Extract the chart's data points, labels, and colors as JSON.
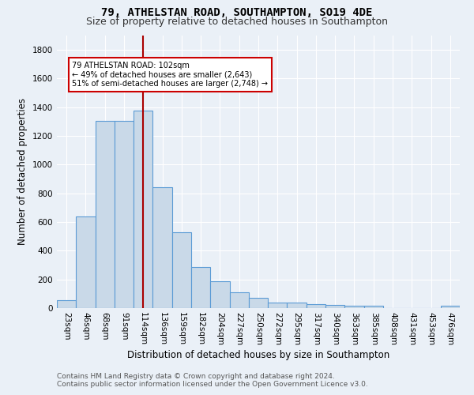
{
  "title1": "79, ATHELSTAN ROAD, SOUTHAMPTON, SO19 4DE",
  "title2": "Size of property relative to detached houses in Southampton",
  "xlabel": "Distribution of detached houses by size in Southampton",
  "ylabel": "Number of detached properties",
  "bar_labels": [
    "23sqm",
    "46sqm",
    "68sqm",
    "91sqm",
    "114sqm",
    "136sqm",
    "159sqm",
    "182sqm",
    "204sqm",
    "227sqm",
    "250sqm",
    "272sqm",
    "295sqm",
    "317sqm",
    "340sqm",
    "363sqm",
    "385sqm",
    "408sqm",
    "431sqm",
    "453sqm",
    "476sqm"
  ],
  "bar_values": [
    55,
    640,
    1305,
    1305,
    1375,
    845,
    530,
    285,
    185,
    110,
    70,
    38,
    38,
    25,
    20,
    15,
    15,
    0,
    0,
    0,
    15
  ],
  "bar_color": "#c9d9e8",
  "bar_edge_color": "#5b9bd5",
  "annotation_text": "79 ATHELSTAN ROAD: 102sqm\n← 49% of detached houses are smaller (2,643)\n51% of semi-detached houses are larger (2,748) →",
  "vline_x": 4.0,
  "vline_color": "#aa0000",
  "annotation_box_color": "#ffffff",
  "annotation_box_edge": "#cc0000",
  "ylim": [
    0,
    1900
  ],
  "yticks": [
    0,
    200,
    400,
    600,
    800,
    1000,
    1200,
    1400,
    1600,
    1800
  ],
  "footer1": "Contains HM Land Registry data © Crown copyright and database right 2024.",
  "footer2": "Contains public sector information licensed under the Open Government Licence v3.0.",
  "background_color": "#eaf0f7",
  "plot_background": "#eaf0f7",
  "title_fontsize": 10,
  "subtitle_fontsize": 9,
  "axis_label_fontsize": 8.5,
  "tick_fontsize": 7.5,
  "footer_fontsize": 6.5
}
